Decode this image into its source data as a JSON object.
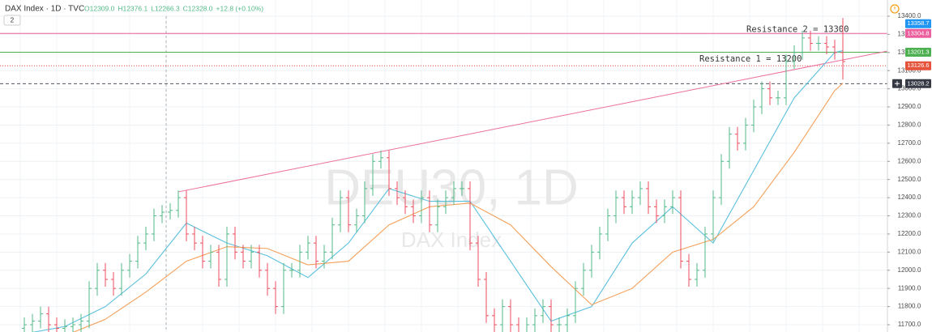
{
  "chart_data": {
    "type": "ohlc",
    "title": "DAX Index · 1D · TVC",
    "ohlc_readout": [
      "O12309.0",
      "H12376.1",
      "L12266.3",
      "C12328.0",
      "+12.8 (+0.10%)"
    ],
    "pane_badge": "2",
    "watermark": "DEU30, 1D",
    "watermark_subtitle": "DAX Index",
    "up_color": "#53b987",
    "down_color": "#eb4d5c",
    "open": [
      11680,
      11700,
      11720,
      11760,
      11700,
      11680,
      11690,
      11700,
      11720,
      11900,
      12000,
      11950,
      11900,
      12000,
      12050,
      12150,
      12200,
      12300,
      12320,
      12330,
      12400,
      12200,
      12150,
      12050,
      12100,
      11950,
      12200,
      12100,
      12050,
      12100,
      12000,
      11900,
      11800,
      12000,
      12000,
      12100,
      12150,
      12050,
      12100,
      12250,
      12400,
      12250,
      12300,
      12450,
      12600,
      12620,
      12450,
      12400,
      12350,
      12300,
      12400,
      12250,
      12350,
      12400,
      12450,
      12450,
      12150,
      11950,
      11750,
      11700,
      11800,
      11700,
      11650,
      11700,
      11750,
      11800,
      11700,
      11700,
      11750,
      11900,
      12000,
      12100,
      12200,
      12300,
      12400,
      12350,
      12400,
      12450,
      12350,
      12300,
      12350,
      12400,
      12050,
      11950,
      12000,
      12200,
      12400,
      12600,
      12750,
      12700,
      12800,
      12900,
      13000,
      12950,
      12950,
      13150,
      13200,
      13280,
      13250,
      13250,
      13230,
      13200
    ],
    "high": [
      11740,
      11760,
      11800,
      11800,
      11740,
      11730,
      11740,
      11760,
      11940,
      12040,
      12040,
      11990,
      12040,
      12090,
      12190,
      12240,
      12340,
      12360,
      12370,
      12440,
      12440,
      12240,
      12190,
      12140,
      12140,
      12240,
      12240,
      12140,
      12140,
      12140,
      12040,
      11940,
      12040,
      12040,
      12140,
      12190,
      12190,
      12140,
      12290,
      12440,
      12440,
      12340,
      12490,
      12640,
      12660,
      12660,
      12490,
      12440,
      12390,
      12440,
      12440,
      12390,
      12440,
      12490,
      12490,
      12490,
      12190,
      11990,
      11790,
      11840,
      11840,
      11740,
      11740,
      11790,
      11840,
      11840,
      11740,
      11790,
      11940,
      12040,
      12140,
      12240,
      12340,
      12440,
      12440,
      12440,
      12490,
      12490,
      12390,
      12390,
      12440,
      12440,
      12090,
      12040,
      12240,
      12440,
      12640,
      12790,
      12790,
      12840,
      12940,
      13040,
      13040,
      12990,
      13190,
      13240,
      13320,
      13320,
      13290,
      13290,
      13270,
      13390
    ],
    "low": [
      11640,
      11660,
      11680,
      11660,
      11640,
      11640,
      11650,
      11660,
      11680,
      11860,
      11910,
      11860,
      11860,
      11960,
      12010,
      12110,
      12160,
      12260,
      12280,
      12290,
      12160,
      12110,
      12010,
      12010,
      11910,
      11910,
      12060,
      12010,
      12010,
      11960,
      11860,
      11760,
      11760,
      11960,
      11960,
      12060,
      12010,
      12010,
      12060,
      12210,
      12210,
      12210,
      12260,
      12410,
      12560,
      12410,
      12360,
      12310,
      12260,
      12260,
      12210,
      12210,
      12310,
      12360,
      12410,
      12110,
      11910,
      11710,
      11660,
      11660,
      11660,
      11610,
      11610,
      11660,
      11710,
      11660,
      11660,
      11660,
      11710,
      11860,
      11960,
      12060,
      12160,
      12260,
      12310,
      12310,
      12360,
      12310,
      12260,
      12260,
      12310,
      12010,
      11910,
      11910,
      11960,
      12160,
      12360,
      12560,
      12660,
      12660,
      12760,
      12860,
      12910,
      12910,
      12910,
      13110,
      13160,
      13210,
      13210,
      13190,
      13160,
      13050
    ],
    "close": [
      11700,
      11720,
      11760,
      11700,
      11680,
      11690,
      11700,
      11720,
      11900,
      12000,
      11950,
      11900,
      12000,
      12050,
      12150,
      12200,
      12300,
      12320,
      12330,
      12400,
      12200,
      12150,
      12050,
      12100,
      11950,
      12200,
      12100,
      12050,
      12100,
      12000,
      11900,
      11800,
      12000,
      12000,
      12100,
      12150,
      12050,
      12100,
      12250,
      12400,
      12250,
      12300,
      12450,
      12600,
      12620,
      12450,
      12400,
      12350,
      12300,
      12400,
      12250,
      12350,
      12400,
      12450,
      12450,
      12150,
      11950,
      11750,
      11700,
      11800,
      11700,
      11650,
      11700,
      11750,
      11800,
      11700,
      11700,
      11750,
      11900,
      12000,
      12100,
      12200,
      12300,
      12400,
      12350,
      12400,
      12450,
      12350,
      12300,
      12350,
      12400,
      12050,
      11950,
      12000,
      12200,
      12400,
      12600,
      12750,
      12700,
      12800,
      12900,
      13000,
      12950,
      12950,
      13150,
      13200,
      13280,
      13250,
      13250,
      13230,
      13200,
      13150
    ],
    "moving_averages": [
      {
        "color": "#5bc0de",
        "x": [
          0,
          5,
          10,
          15,
          20,
          25,
          30,
          35,
          40,
          45,
          50,
          55,
          60,
          65,
          70,
          75,
          80,
          85,
          90,
          95,
          100,
          101
        ],
        "values": [
          11650,
          11690,
          11800,
          11980,
          12260,
          12150,
          12080,
          11960,
          12150,
          12450,
          12380,
          12380,
          12050,
          11720,
          11800,
          12150,
          12350,
          12150,
          12550,
          12950,
          13200,
          13210
        ]
      },
      {
        "color": "#f5a05a",
        "x": [
          0,
          5,
          10,
          15,
          20,
          25,
          30,
          35,
          40,
          45,
          50,
          55,
          60,
          65,
          70,
          75,
          80,
          85,
          90,
          95,
          100,
          101
        ],
        "values": [
          11600,
          11640,
          11730,
          11880,
          12050,
          12130,
          12120,
          12030,
          12050,
          12250,
          12350,
          12370,
          12250,
          12020,
          11810,
          11900,
          12100,
          12170,
          12350,
          12650,
          12990,
          13030
        ]
      }
    ],
    "ylim": [
      11660,
      13489
    ],
    "yticks": [
      {
        "value": 11700,
        "label": "11700.0"
      },
      {
        "value": 11800,
        "label": "11800.0"
      },
      {
        "value": 11900,
        "label": "11900.0"
      },
      {
        "value": 12000,
        "label": "12000.0"
      },
      {
        "value": 12100,
        "label": "12100.0"
      },
      {
        "value": 12200,
        "label": "12200.0"
      },
      {
        "value": 12300,
        "label": "12300.0"
      },
      {
        "value": 12400,
        "label": "12400.0"
      },
      {
        "value": 12500,
        "label": "12500.0"
      },
      {
        "value": 12600,
        "label": "12600.0"
      },
      {
        "value": 12700,
        "label": "12700.0"
      },
      {
        "value": 12800,
        "label": "12800.0"
      },
      {
        "value": 12900,
        "label": "12900.0"
      },
      {
        "value": 13000,
        "label": "13000.0"
      },
      {
        "value": 13100,
        "label": "13100.0"
      },
      {
        "value": 13200,
        "label": "13200.0"
      },
      {
        "value": 13300,
        "label": "13300.0"
      },
      {
        "value": 13400,
        "label": "13400.0"
      }
    ],
    "grid": true,
    "price_lines": [
      {
        "value": 13358.7,
        "color": "#2196f3",
        "style": "none"
      },
      {
        "value": 13304.8,
        "color": "#ec5f9c",
        "style": "solid"
      },
      {
        "value": 13201.3,
        "color": "#4caf50",
        "style": "solid"
      },
      {
        "value": 13126.6,
        "color": "#e5533c",
        "style": "dotted"
      },
      {
        "value": 13028.2,
        "color": "#363a45",
        "style": "dashed"
      }
    ],
    "trend_line": {
      "color": "#ec6f9c",
      "x": [
        19,
        108
      ],
      "values": [
        12432,
        13221
      ]
    },
    "annotations": [
      {
        "text": "Resistance 2 = 13300",
        "value": 13300
      },
      {
        "text": "Resistance 1 = 13200",
        "value": 13200
      }
    ]
  }
}
